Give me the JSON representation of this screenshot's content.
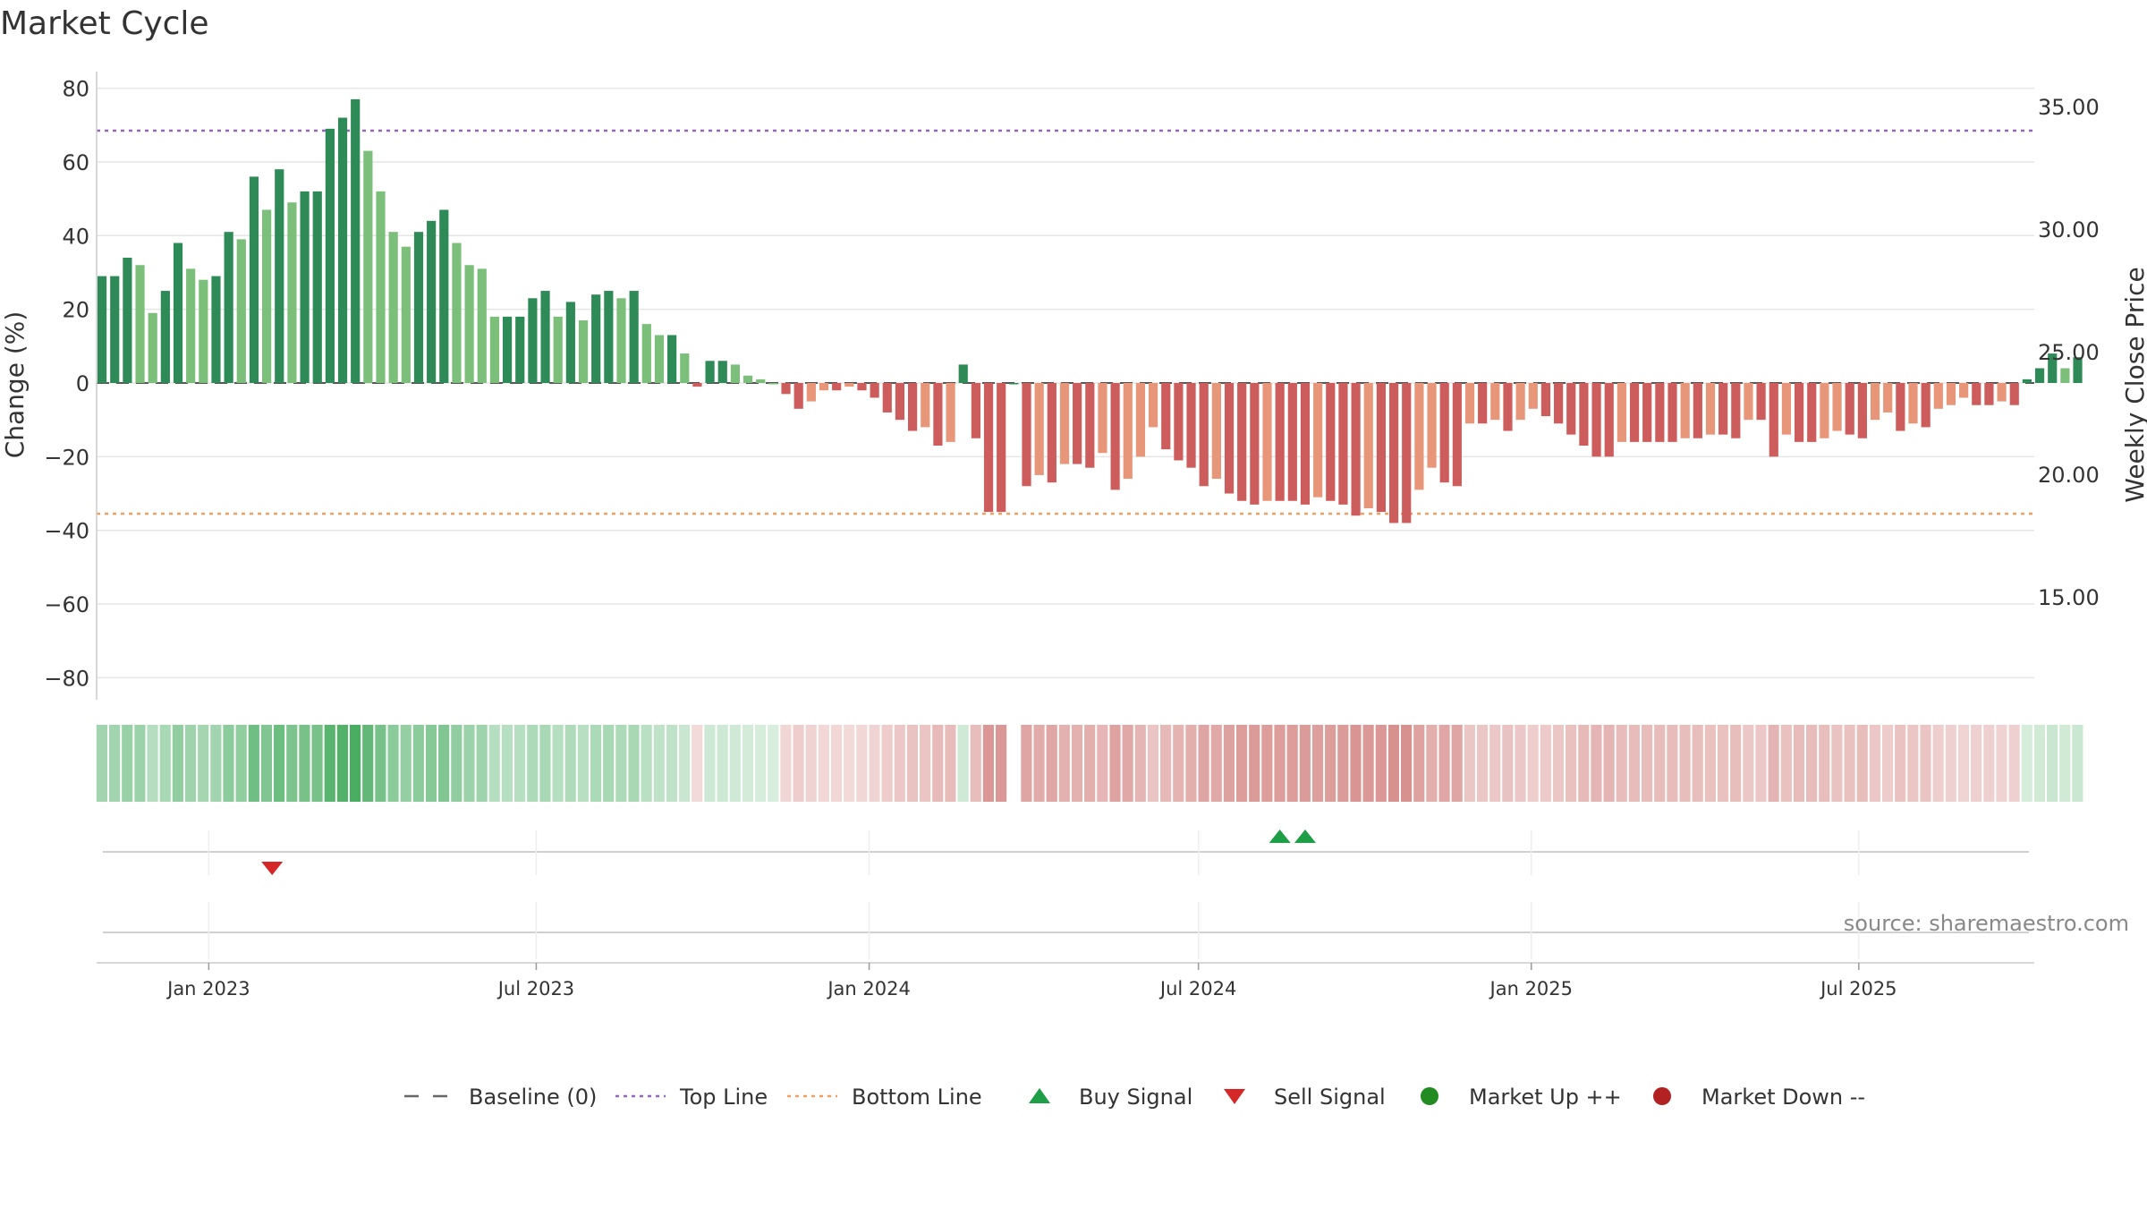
{
  "chart_data": {
    "type": "bar",
    "title": "Market Cycle",
    "ylabel_left": "Change (%)",
    "ylabel_right": "Weekly Close Price",
    "ylim_left": [
      -85,
      85
    ],
    "yticks_left": [
      80,
      60,
      40,
      20,
      0,
      -20,
      -40,
      -60,
      -80
    ],
    "ytick_labels_left": [
      "80",
      "60",
      "40",
      "20",
      "0",
      "−20",
      "−40",
      "−60",
      "−80"
    ],
    "yticks_right": [
      35,
      30,
      25,
      20,
      15
    ],
    "ytick_labels_right": [
      "35.00",
      "30.00",
      "25.00",
      "20.00",
      "15.00"
    ],
    "x_range": [
      "2022-10-31",
      "2025-10-06"
    ],
    "x_ticks": [
      {
        "date": "2023-01-01",
        "label": "Jan 2023"
      },
      {
        "date": "2023-07-01",
        "label": "Jul 2023"
      },
      {
        "date": "2024-01-01",
        "label": "Jan 2024"
      },
      {
        "date": "2024-07-01",
        "label": "Jul 2024"
      },
      {
        "date": "2025-01-01",
        "label": "Jan 2025"
      },
      {
        "date": "2025-07-01",
        "label": "Jul 2025"
      }
    ],
    "first_week": "2022-11-03",
    "week_step_days": 7,
    "bar_values": [
      29,
      29,
      34,
      32,
      19,
      25,
      38,
      31,
      28,
      29,
      41,
      39,
      56,
      47,
      58,
      49,
      52,
      52,
      69,
      72,
      77,
      63,
      52,
      41,
      37,
      41,
      44,
      47,
      38,
      32,
      31,
      18,
      18,
      18,
      23,
      25,
      18,
      22,
      17,
      24,
      25,
      23,
      25,
      16,
      13,
      13,
      8,
      -1,
      6,
      6,
      5,
      2,
      1,
      0,
      -3,
      -7,
      -5,
      -2,
      -2,
      -1,
      -2,
      -4,
      -8,
      -10,
      -13,
      -12,
      -17,
      -16,
      5,
      -15,
      -35,
      -35,
      0,
      -28,
      -25,
      -27,
      -22,
      -22,
      -23,
      -19,
      -29,
      -26,
      -20,
      -12,
      -18,
      -21,
      -23,
      -28,
      -26,
      -30,
      -32,
      -33,
      -32,
      -32,
      -32,
      -33,
      -31,
      -32,
      -33,
      -36,
      -34,
      -35,
      -38,
      -38,
      -29,
      -23,
      -27,
      -28,
      -11,
      -11,
      -10,
      -13,
      -10,
      -7,
      -9,
      -11,
      -14,
      -17,
      -20,
      -20,
      -16,
      -16,
      -16,
      -16,
      -16,
      -15,
      -15,
      -14,
      -14,
      -15,
      -10,
      -10,
      -20,
      -14,
      -16,
      -16,
      -15,
      -13,
      -14,
      -15,
      -10,
      -8,
      -13,
      -11,
      -12,
      -7,
      -6,
      -4,
      -6,
      -6,
      -5,
      -6,
      1,
      4,
      8,
      4,
      7
    ],
    "reference_lines": [
      {
        "name": "Baseline (0)",
        "y": 0,
        "color": "#555555",
        "style": "dashed"
      },
      {
        "name": "Top Line",
        "y": 68.5,
        "color": "#9467bd",
        "style": "dotted"
      },
      {
        "name": "Bottom Line",
        "y": -35.5,
        "color": "#f0a060",
        "style": "dotted"
      }
    ],
    "signals": [
      {
        "type": "sell",
        "date": "2023-02-05"
      },
      {
        "type": "buy",
        "date": "2024-08-15"
      },
      {
        "type": "buy",
        "date": "2024-08-29"
      }
    ],
    "colors": {
      "strong_up": "#2e8b57",
      "mild_up": "#7bbf7b",
      "strong_down": "#cd5c5c",
      "mild_down": "#e8967a",
      "top_line": "#9467bd",
      "bottom_line": "#f0a060",
      "buy": "#1e9e46",
      "sell": "#d62728",
      "market_up": "#228b22",
      "market_down": "#b22222"
    },
    "legend": {
      "placement": "bottom-center",
      "items": [
        {
          "label": "Baseline (0)",
          "symbol": "dash",
          "color": "#666666"
        },
        {
          "label": "Top Line",
          "symbol": "dot-line",
          "color": "#9467bd"
        },
        {
          "label": "Bottom Line",
          "symbol": "dot-line",
          "color": "#f0a060"
        },
        {
          "label": "Buy Signal",
          "symbol": "triangle-up",
          "color": "#1e9e46"
        },
        {
          "label": "Sell Signal",
          "symbol": "triangle-down",
          "color": "#d62728"
        },
        {
          "label": "Market Up ++",
          "symbol": "circle",
          "color": "#228b22"
        },
        {
          "label": "Market Down --",
          "symbol": "circle",
          "color": "#b22222"
        }
      ]
    },
    "source": "source: sharemaestro.com",
    "grid": true
  }
}
